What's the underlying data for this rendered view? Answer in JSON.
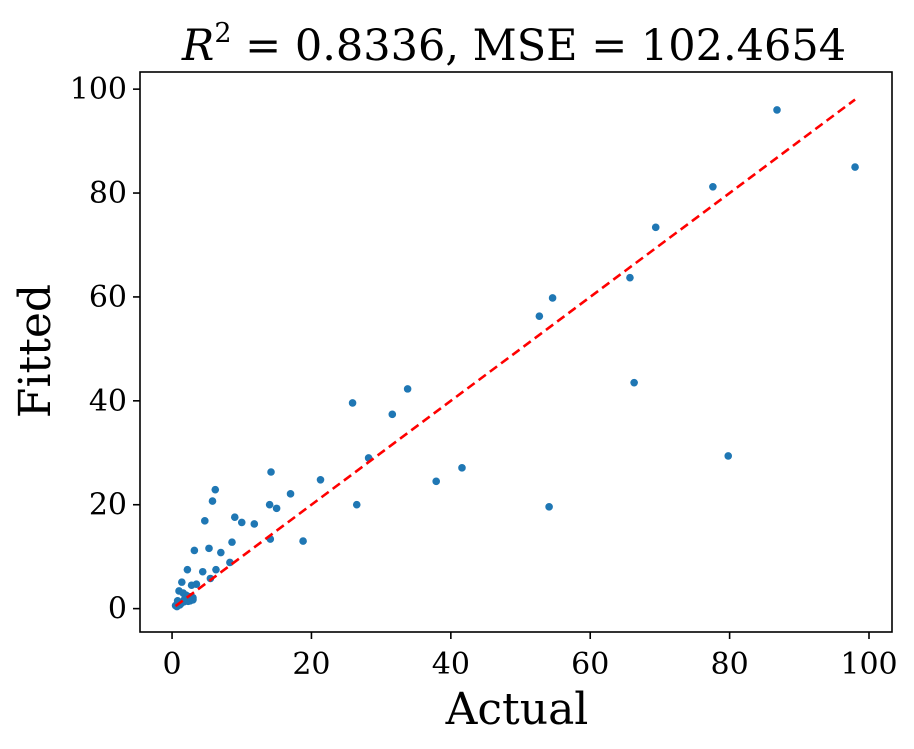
{
  "chart_data": {
    "type": "scatter",
    "title": "R² = 0.8336, MSE = 102.4654",
    "title_parts": {
      "r": "R",
      "sup": "2",
      "rest": " = 0.8336, MSE = 102.4654"
    },
    "xlabel": "Actual",
    "ylabel": "Fitted",
    "xlim": [
      -4.6,
      103.3
    ],
    "ylim": [
      -4.5,
      103.3
    ],
    "xticks": [
      0,
      20,
      40,
      60,
      80,
      100
    ],
    "yticks": [
      0,
      20,
      40,
      60,
      80,
      100
    ],
    "xtick_labels": [
      "0",
      "20",
      "40",
      "60",
      "80",
      "100"
    ],
    "ytick_labels": [
      "0",
      "20",
      "40",
      "60",
      "80",
      "100"
    ],
    "grid": false,
    "series": [
      {
        "name": "points",
        "color": "#1f77b4",
        "x": [
          86.8,
          98.0,
          77.6,
          69.4,
          65.7,
          54.6,
          52.7,
          66.3,
          79.8,
          54.1,
          33.8,
          31.6,
          25.9,
          28.2,
          26.5,
          37.9,
          41.6,
          21.3,
          17.0,
          14.2,
          14.0,
          14.1,
          15.0,
          18.8,
          9.0,
          10.0,
          11.8,
          8.6,
          6.2,
          5.8,
          4.7,
          5.3,
          3.2,
          7.0,
          8.3,
          2.2,
          1.4,
          2.8,
          3.5,
          4.4,
          5.5,
          6.3,
          1.0,
          1.6,
          2.0,
          2.5,
          3.0,
          0.8,
          1.2,
          1.8,
          2.6,
          0.5,
          0.9,
          1.3,
          1.7,
          2.3,
          3.0,
          0.7,
          1.1
        ],
        "y": [
          96.0,
          85.0,
          81.2,
          73.4,
          63.7,
          59.8,
          56.3,
          43.5,
          29.4,
          19.6,
          42.3,
          37.4,
          39.6,
          29.0,
          20.0,
          24.5,
          27.1,
          24.8,
          22.1,
          26.3,
          20.0,
          13.4,
          19.3,
          13.0,
          17.6,
          16.6,
          16.3,
          12.8,
          22.9,
          20.7,
          16.9,
          11.6,
          11.2,
          10.8,
          8.9,
          7.5,
          5.1,
          4.5,
          4.7,
          7.1,
          5.8,
          7.5,
          3.4,
          3.0,
          2.6,
          2.3,
          2.1,
          1.5,
          1.2,
          1.8,
          1.5,
          0.6,
          0.8,
          1.0,
          1.3,
          1.4,
          1.7,
          0.4,
          0.7
        ]
      }
    ],
    "reference_line": {
      "name": "y = x",
      "color": "#ff0000",
      "style": "dashed",
      "x": [
        0.5,
        98.0
      ],
      "y": [
        0.5,
        98.0
      ]
    }
  }
}
